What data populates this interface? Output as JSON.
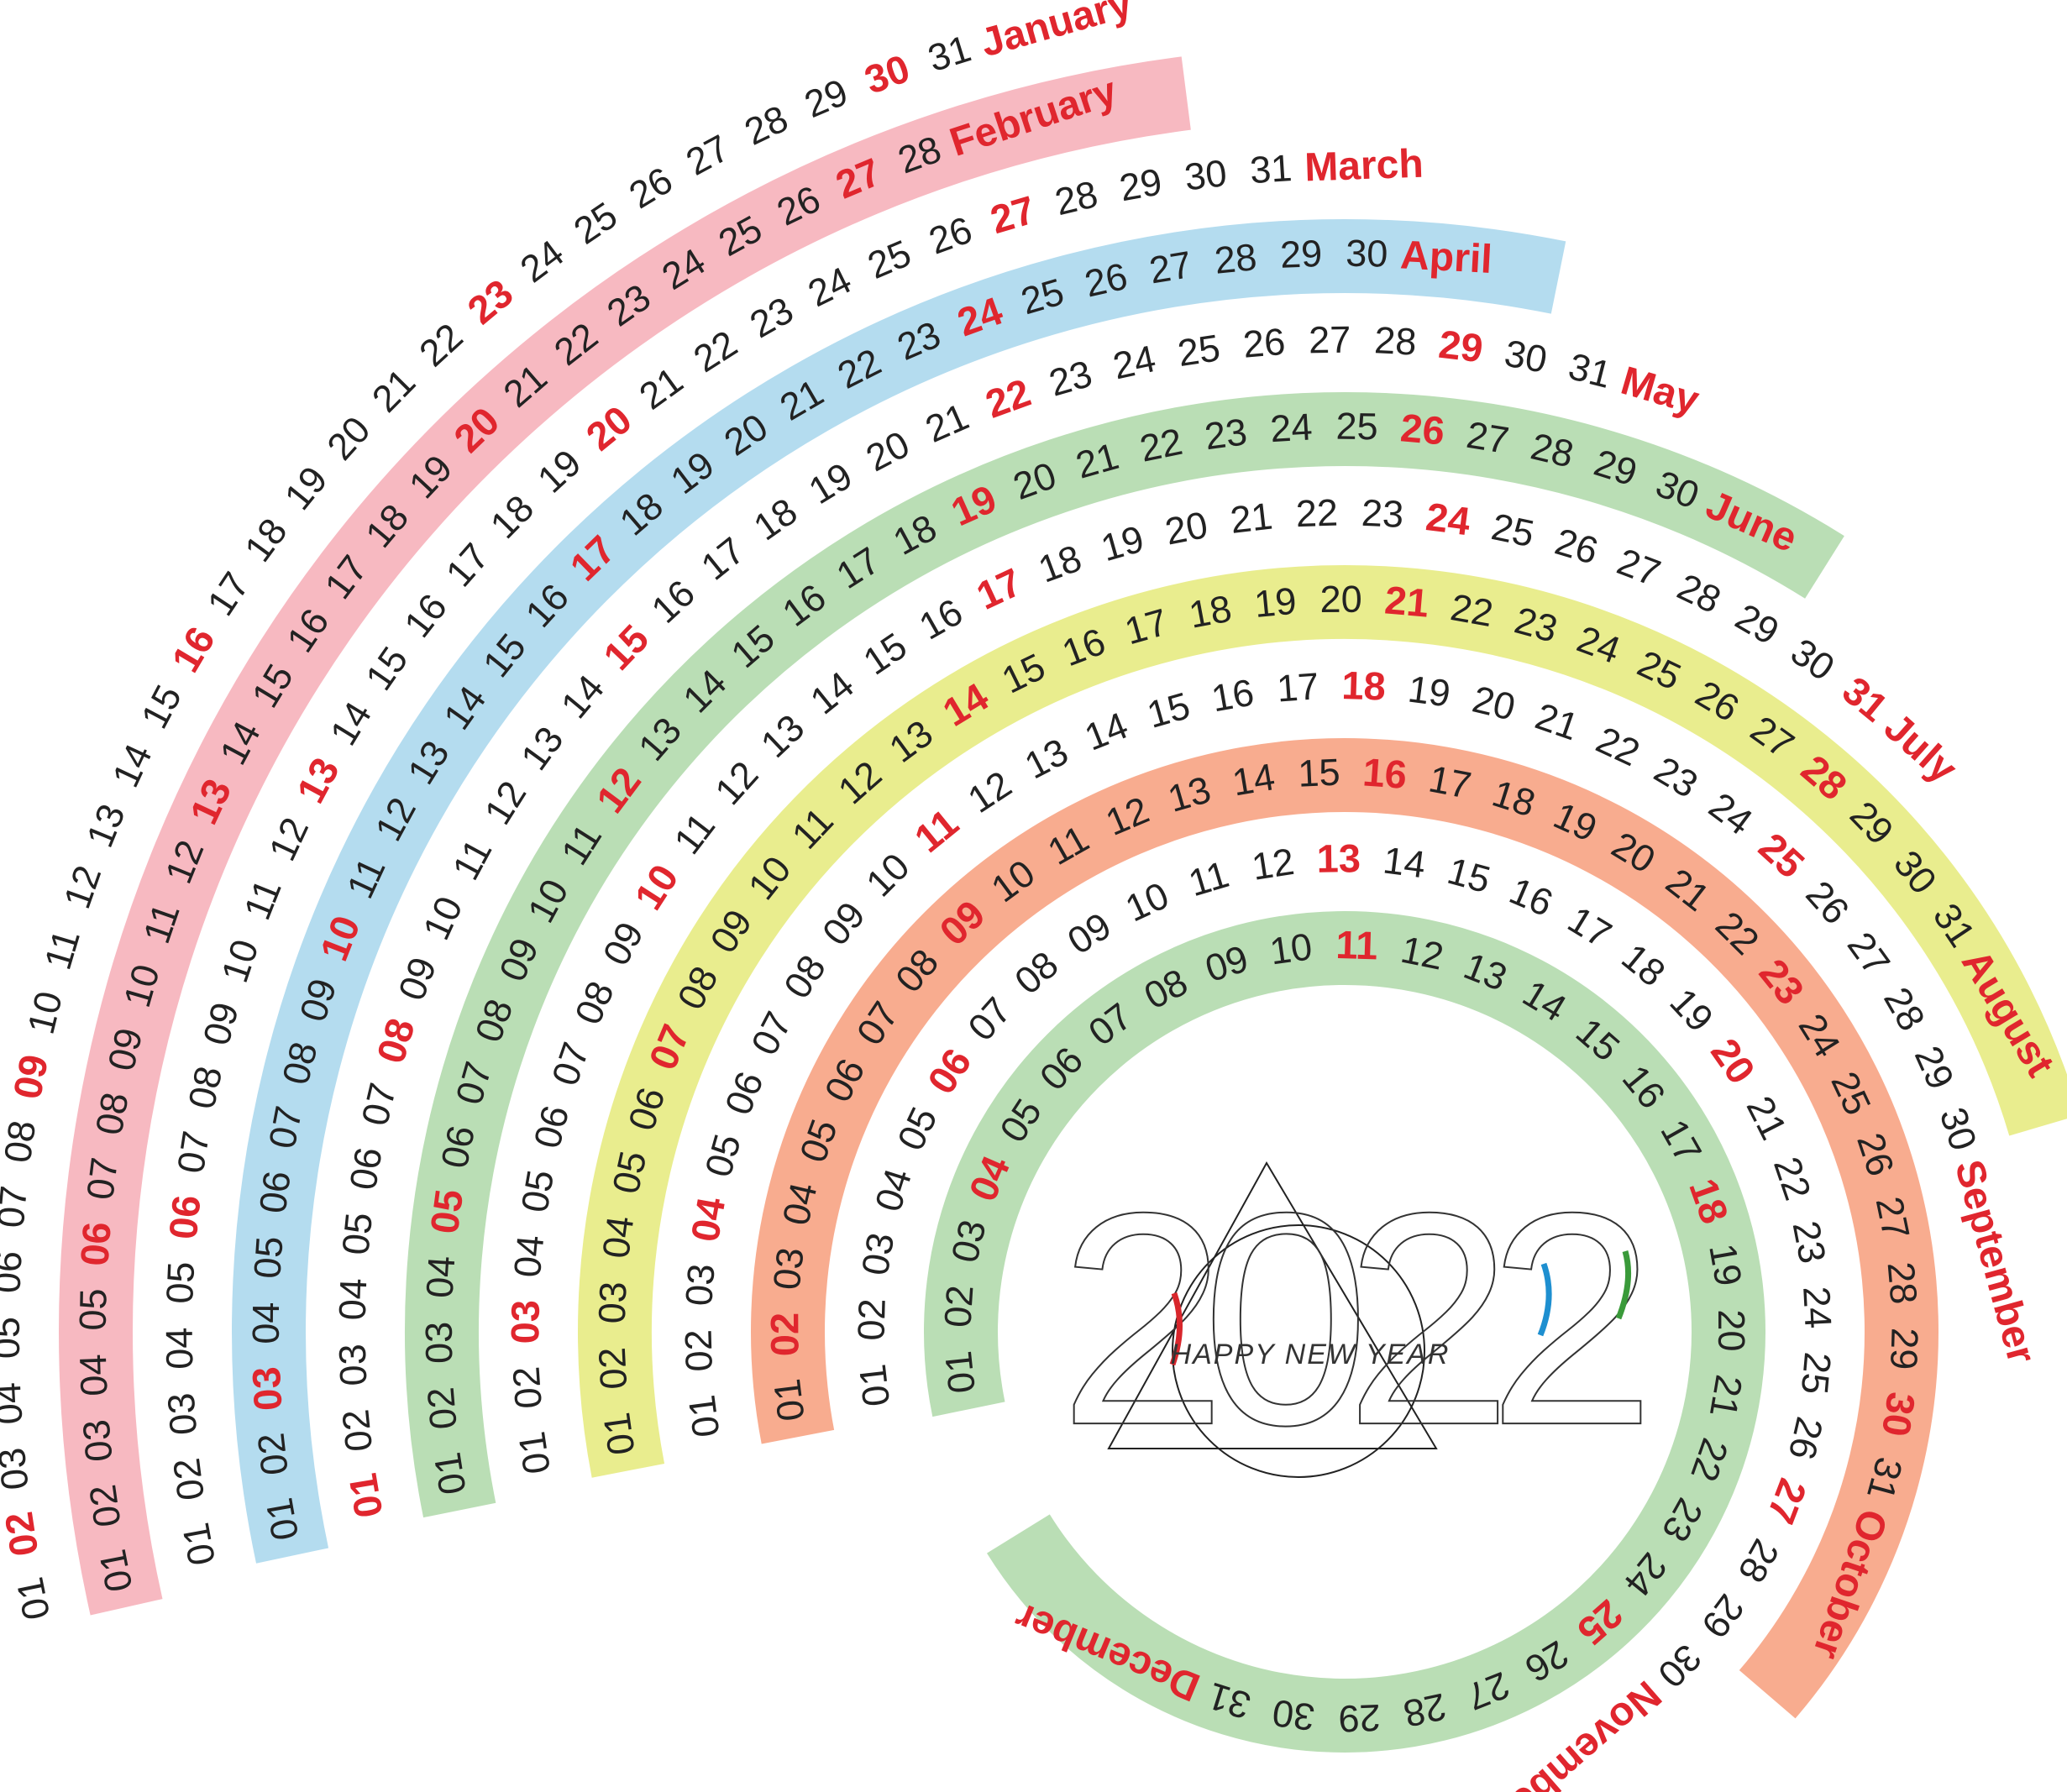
{
  "highlight_color": "#e0262e",
  "months": [
    {
      "name": "January",
      "days": [
        "01",
        "02",
        "03",
        "04",
        "05",
        "06",
        "07",
        "08",
        "09",
        "10",
        "11",
        "12",
        "13",
        "14",
        "15",
        "16",
        "17",
        "18",
        "19",
        "20",
        "21",
        "22",
        "23",
        "24",
        "25",
        "26",
        "27",
        "28",
        "29",
        "30",
        "31"
      ],
      "sundays": [
        2,
        9,
        16,
        23,
        30
      ]
    },
    {
      "name": "February",
      "band_color": "#f7b9c1",
      "days": [
        "01",
        "02",
        "03",
        "04",
        "05",
        "06",
        "07",
        "08",
        "09",
        "10",
        "11",
        "12",
        "13",
        "14",
        "15",
        "16",
        "17",
        "18",
        "19",
        "20",
        "21",
        "22",
        "23",
        "24",
        "25",
        "26",
        "27",
        "28"
      ],
      "sundays": [
        6,
        13,
        20,
        27
      ]
    },
    {
      "name": "March",
      "days": [
        "01",
        "02",
        "03",
        "04",
        "05",
        "06",
        "07",
        "08",
        "09",
        "10",
        "11",
        "12",
        "13",
        "14",
        "15",
        "16",
        "17",
        "18",
        "19",
        "20",
        "21",
        "22",
        "23",
        "24",
        "25",
        "26",
        "27",
        "28",
        "29",
        "30",
        "31"
      ],
      "sundays": [
        6,
        13,
        20,
        27
      ]
    },
    {
      "name": "April",
      "band_color": "#b4dcef",
      "days": [
        "01",
        "02",
        "03",
        "04",
        "05",
        "06",
        "07",
        "08",
        "09",
        "10",
        "11",
        "12",
        "13",
        "14",
        "15",
        "16",
        "17",
        "18",
        "19",
        "20",
        "21",
        "22",
        "23",
        "24",
        "25",
        "26",
        "27",
        "28",
        "29",
        "30"
      ],
      "sundays": [
        3,
        10,
        17,
        24
      ]
    },
    {
      "name": "May",
      "days": [
        "01",
        "02",
        "03",
        "04",
        "05",
        "06",
        "07",
        "08",
        "09",
        "10",
        "11",
        "12",
        "13",
        "14",
        "15",
        "16",
        "17",
        "18",
        "19",
        "20",
        "21",
        "22",
        "23",
        "24",
        "25",
        "26",
        "27",
        "28",
        "29",
        "30",
        "31"
      ],
      "sundays": [
        1,
        8,
        15,
        22,
        29
      ]
    },
    {
      "name": "June",
      "band_color": "#badeb5",
      "days": [
        "01",
        "02",
        "03",
        "04",
        "05",
        "06",
        "07",
        "08",
        "09",
        "10",
        "11",
        "12",
        "13",
        "14",
        "15",
        "16",
        "17",
        "18",
        "19",
        "20",
        "21",
        "22",
        "23",
        "24",
        "25",
        "26",
        "27",
        "28",
        "29",
        "30"
      ],
      "sundays": [
        5,
        12,
        19,
        26
      ]
    },
    {
      "name": "July",
      "days": [
        "01",
        "02",
        "03",
        "04",
        "05",
        "06",
        "07",
        "08",
        "09",
        "10",
        "11",
        "12",
        "13",
        "14",
        "15",
        "16",
        "17",
        "18",
        "19",
        "20",
        "21",
        "22",
        "23",
        "24",
        "25",
        "26",
        "27",
        "28",
        "29",
        "30",
        "31"
      ],
      "sundays": [
        3,
        10,
        17,
        24,
        31
      ]
    },
    {
      "name": "August",
      "band_color": "#e9ed8e",
      "days": [
        "01",
        "02",
        "03",
        "04",
        "05",
        "06",
        "07",
        "08",
        "09",
        "10",
        "11",
        "12",
        "13",
        "14",
        "15",
        "16",
        "17",
        "18",
        "19",
        "20",
        "21",
        "22",
        "23",
        "24",
        "25",
        "26",
        "27",
        "28",
        "29",
        "30",
        "31"
      ],
      "sundays": [
        7,
        14,
        21,
        28
      ]
    },
    {
      "name": "September",
      "days": [
        "01",
        "02",
        "03",
        "04",
        "05",
        "06",
        "07",
        "08",
        "09",
        "10",
        "11",
        "12",
        "13",
        "14",
        "15",
        "16",
        "17",
        "18",
        "19",
        "20",
        "21",
        "22",
        "23",
        "24",
        "25",
        "26",
        "27",
        "28",
        "29",
        "30"
      ],
      "sundays": [
        4,
        11,
        18,
        25
      ]
    },
    {
      "name": "October",
      "band_color": "#f8ac8f",
      "days": [
        "01",
        "02",
        "03",
        "04",
        "05",
        "06",
        "07",
        "08",
        "09",
        "10",
        "11",
        "12",
        "13",
        "14",
        "15",
        "16",
        "17",
        "18",
        "19",
        "20",
        "21",
        "22",
        "23",
        "24",
        "25",
        "26",
        "27",
        "28",
        "29",
        "30",
        "31"
      ],
      "sundays": [
        2,
        9,
        16,
        23,
        30
      ]
    },
    {
      "name": "November",
      "days": [
        "01",
        "02",
        "03",
        "04",
        "05",
        "06",
        "07",
        "08",
        "09",
        "10",
        "11",
        "12",
        "13",
        "14",
        "15",
        "16",
        "17",
        "18",
        "19",
        "20",
        "21",
        "22",
        "23",
        "24",
        "25",
        "26",
        "27",
        "28",
        "29",
        "30"
      ],
      "sundays": [
        6,
        13,
        20,
        27
      ]
    },
    {
      "name": "December",
      "band_color": "#badeb5",
      "days": [
        "01",
        "02",
        "03",
        "04",
        "05",
        "06",
        "07",
        "08",
        "09",
        "10",
        "11",
        "12",
        "13",
        "14",
        "15",
        "16",
        "17",
        "18",
        "19",
        "20",
        "21",
        "22",
        "23",
        "24",
        "25",
        "26",
        "27",
        "28",
        "29",
        "30",
        "31"
      ],
      "sundays": [
        4,
        11,
        18,
        25
      ]
    }
  ],
  "logo": {
    "year": "2022",
    "text": "HAPPY NEW YEAR"
  }
}
